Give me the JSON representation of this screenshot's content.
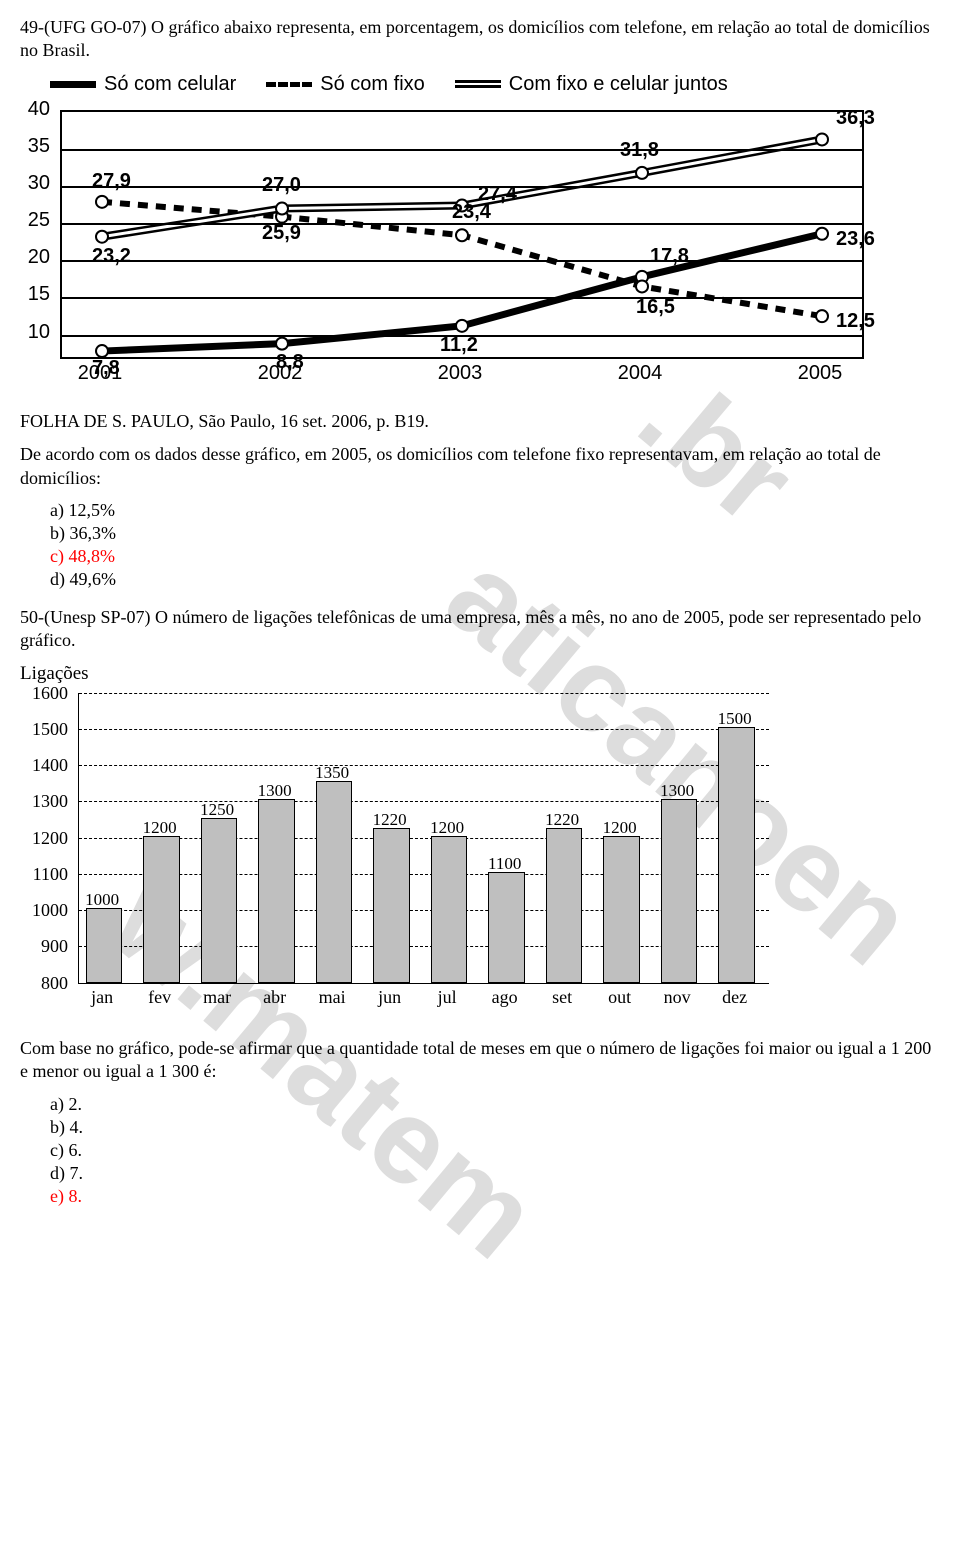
{
  "q49": {
    "prompt": "49-(UFG GO-07) O gráfico abaixo representa, em porcentagem, os domicílios com telefone, em relação ao total de domicílios no Brasil.",
    "source": "FOLHA DE S. PAULO, São Paulo, 16 set. 2006, p. B19.",
    "followup": "De acordo com os dados desse gráfico, em 2005, os domicílios com telefone fixo representavam, em relação ao total de domicílios:",
    "options": {
      "a": "a)   12,5%",
      "b": "b)   36,3%",
      "c": "c)   48,8%",
      "d": "d)   49,6%"
    },
    "correct_color": "#ff0000"
  },
  "chart1": {
    "type": "line",
    "legend": {
      "a": "Só com celular",
      "b": "Só com fixo",
      "c": "Com fixo e celular juntos"
    },
    "x_categories": [
      "2001",
      "2002",
      "2003",
      "2004",
      "2005"
    ],
    "y_ticks": [
      10,
      15,
      20,
      25,
      30,
      35,
      40
    ],
    "ylim": [
      7,
      40
    ],
    "series": {
      "so_celular": {
        "values": [
          7.8,
          8.8,
          11.2,
          17.8,
          23.6
        ],
        "labels": [
          "7,8",
          "8,8",
          "11,2",
          "17,8",
          "23,6"
        ],
        "style": "thick",
        "color": "#000000",
        "linewidth": 6
      },
      "so_fixo": {
        "values": [
          27.9,
          25.9,
          23.4,
          16.5,
          12.5
        ],
        "labels": [
          "27,9",
          "25,9",
          "23,4",
          "16,5",
          "12,5"
        ],
        "style": "dashed",
        "color": "#000000",
        "linewidth": 5
      },
      "fixo_celular": {
        "values": [
          23.2,
          27.0,
          27.4,
          31.8,
          36.3
        ],
        "labels": [
          "23,2",
          "27,0",
          "27,4",
          "31,8",
          "36,3"
        ],
        "style": "double",
        "color": "#000000",
        "linewidth": 3
      }
    },
    "marker": {
      "radius": 6,
      "fill": "#ffffff",
      "stroke": "#000000",
      "stroke_width": 2
    },
    "background": "#ffffff",
    "grid_color": "#000000"
  },
  "q50": {
    "prompt": "50-(Unesp SP-07) O número de ligações telefônicas de uma empresa, mês a mês, no ano de 2005, pode ser representado pelo gráfico.",
    "followup": "Com base no gráfico, pode-se afirmar que a quantidade total de meses em que o número de ligações foi maior ou igual a 1 200 e menor ou igual a 1 300 é:",
    "options": {
      "a": "a)   2.",
      "b": "b)   4.",
      "c": "c)   6.",
      "d": "d)   7.",
      "e": "e)   8."
    },
    "correct_color": "#ff0000"
  },
  "chart2": {
    "type": "bar",
    "title": "Ligações",
    "x_categories": [
      "jan",
      "fev",
      "mar",
      "abr",
      "mai",
      "jun",
      "jul",
      "ago",
      "set",
      "out",
      "nov",
      "dez"
    ],
    "values": [
      1000,
      1200,
      1250,
      1300,
      1350,
      1220,
      1200,
      1100,
      1220,
      1200,
      1300,
      1500
    ],
    "value_labels": [
      "1000",
      "1200",
      "1250",
      "1300",
      "1350",
      "1220",
      "1200",
      "1100",
      "1220",
      "1200",
      "1300",
      "1500"
    ],
    "y_ticks": [
      800,
      900,
      1000,
      1100,
      1200,
      1300,
      1400,
      1500,
      1600
    ],
    "ylim": [
      800,
      1600
    ],
    "bar_color": "#bfbfbf",
    "bar_border": "#000000",
    "grid_color": "#000000",
    "background": "#ffffff",
    "bar_width": 0.6
  }
}
